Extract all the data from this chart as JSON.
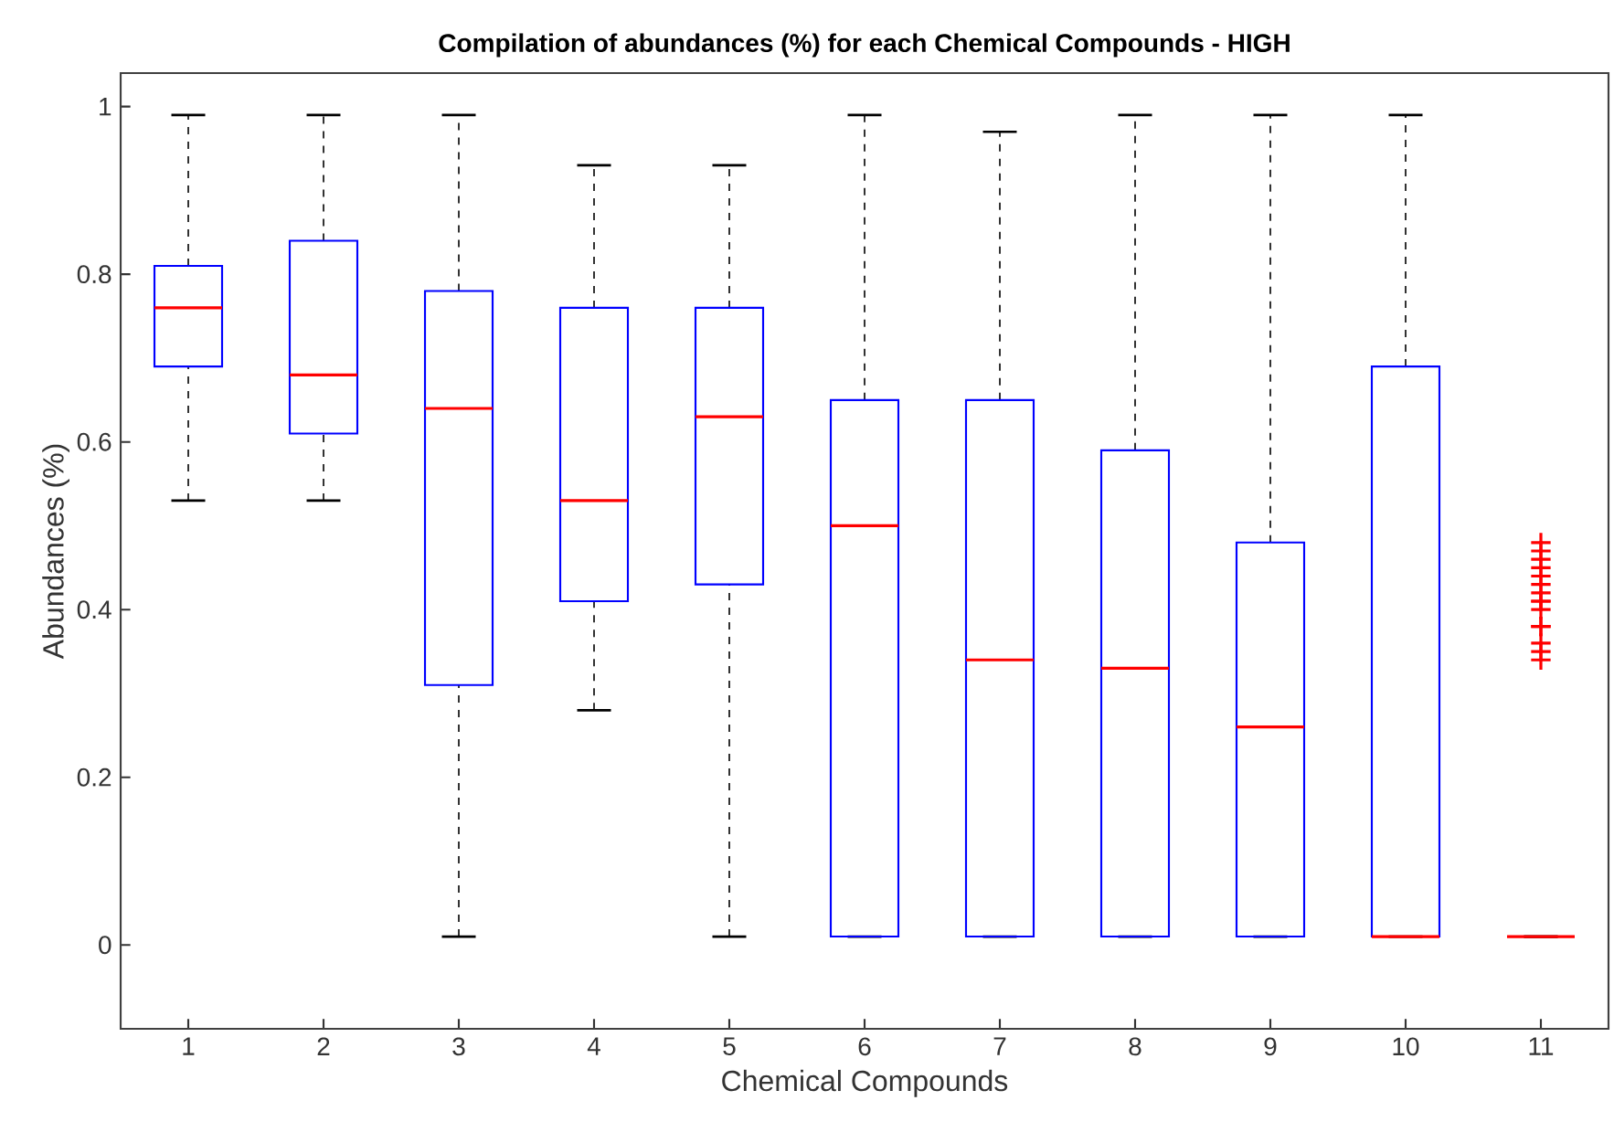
{
  "chart_data": {
    "type": "box",
    "title": "Compilation of abundances (%) for each Chemical Compounds - HIGH",
    "xlabel": "Chemical Compounds",
    "ylabel": "Abundances (%)",
    "categories": [
      "1",
      "2",
      "3",
      "4",
      "5",
      "6",
      "7",
      "8",
      "9",
      "10",
      "11"
    ],
    "series": [
      {
        "color": "#0000ff",
        "boxes": [
          {
            "low": 0.53,
            "q1": 0.69,
            "median": 0.76,
            "q3": 0.81,
            "high": 0.99
          },
          {
            "low": 0.53,
            "q1": 0.61,
            "median": 0.68,
            "q3": 0.84,
            "high": 0.99
          },
          {
            "low": 0.01,
            "q1": 0.31,
            "median": 0.64,
            "q3": 0.78,
            "high": 0.99
          },
          {
            "low": 0.28,
            "q1": 0.41,
            "median": 0.53,
            "q3": 0.76,
            "high": 0.93
          },
          {
            "low": 0.01,
            "q1": 0.43,
            "median": 0.63,
            "q3": 0.76,
            "high": 0.93
          },
          {
            "low": 0.01,
            "q1": 0.01,
            "median": 0.5,
            "q3": 0.65,
            "high": 0.99
          },
          {
            "low": 0.01,
            "q1": 0.01,
            "median": 0.34,
            "q3": 0.65,
            "high": 0.97
          },
          {
            "low": 0.01,
            "q1": 0.01,
            "median": 0.33,
            "q3": 0.59,
            "high": 0.99
          },
          {
            "low": 0.01,
            "q1": 0.01,
            "median": 0.26,
            "q3": 0.48,
            "high": 0.99
          },
          {
            "low": 0.01,
            "q1": 0.01,
            "median": 0.01,
            "q3": 0.69,
            "high": 0.99
          },
          {
            "low": 0.01,
            "q1": 0.01,
            "median": 0.01,
            "q3": 0.01,
            "high": 0.01,
            "outliers": [
              0.48,
              0.47,
              0.46,
              0.45,
              0.44,
              0.43,
              0.42,
              0.41,
              0.41,
              0.4,
              0.38,
              0.38,
              0.36,
              0.35,
              0.34
            ]
          }
        ]
      }
    ],
    "ylim": [
      -0.1,
      1.04
    ],
    "yticks": [
      0,
      0.2,
      0.4,
      0.6,
      0.8,
      1
    ],
    "marker": "cross"
  }
}
